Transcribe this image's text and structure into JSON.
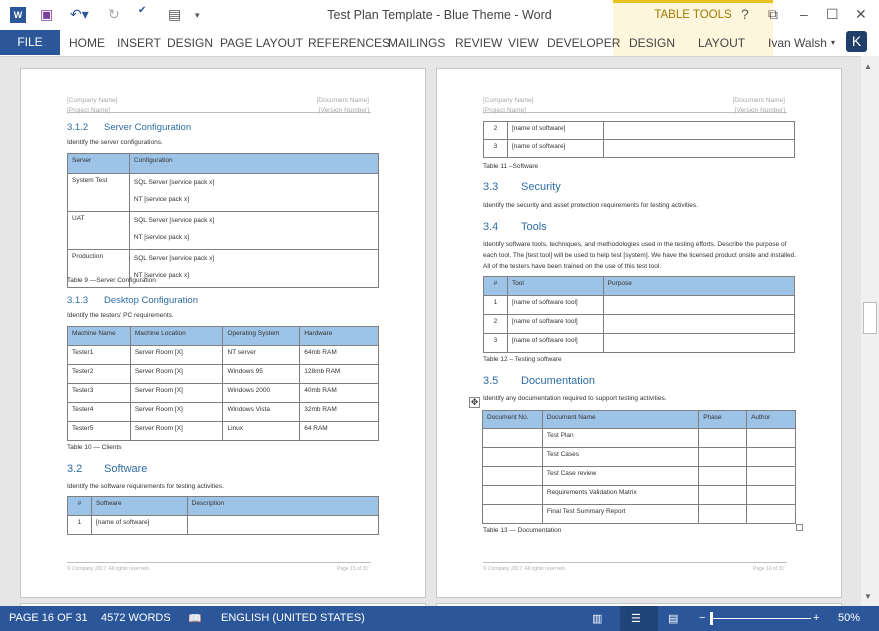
{
  "window": {
    "title": "Test Plan Template - Blue Theme - Word",
    "table_tools": "TABLE TOOLS",
    "user": "Ivan Walsh",
    "user_initial": "K",
    "accent": "#2b579a"
  },
  "ribbon": {
    "tabs": [
      "FILE",
      "HOME",
      "INSERT",
      "DESIGN",
      "PAGE LAYOUT",
      "REFERENCES",
      "MAILINGS",
      "REVIEW",
      "VIEW",
      "DEVELOPER",
      "DESIGN",
      "LAYOUT"
    ]
  },
  "header": {
    "company": "[Company Name]",
    "project": "[Project Name]",
    "document": "[Document Name]",
    "version": "[Version Number]"
  },
  "footer": {
    "copyright": "© Company 2017. All rights reserved.",
    "left_page": "Page 15 of 31",
    "right_page": "Page 16 of 31"
  },
  "left": {
    "s312": {
      "num": "3.1.2",
      "title": "Server Configuration",
      "text": "Identify the server configurations.",
      "caption": "Table 9 —Server Configuration",
      "table": [
        [
          "Server",
          "Configuration"
        ],
        [
          "System Test",
          "SQL Server [service pack x]\nNT [service pack x]"
        ],
        [
          "UAT",
          "SQL Server [service pack x]\nNT [service pack x]"
        ],
        [
          "Production",
          "SQL Server [service pack x]\nNT [service pack x]"
        ]
      ]
    },
    "s313": {
      "num": "3.1.3",
      "title": "Desktop Configuration",
      "text": "Identify the testers' PC requirements.",
      "caption": "Table 10 — Clients",
      "table": [
        [
          "Machine Name",
          "Machine Location",
          "Operating System",
          "Hardware"
        ],
        [
          "Tester1",
          "Server Room [X]",
          "NT server",
          "64mb RAM"
        ],
        [
          "Tester2",
          "Server Room [X]",
          "Windows 95",
          "128mb RAM"
        ],
        [
          "Tester3",
          "Server Room [X]",
          "Windows 2000",
          "40mb RAM"
        ],
        [
          "Tester4",
          "Server Room [X]",
          "Windows Vista",
          "32mb RAM"
        ],
        [
          "Tester5",
          "Server Room [X]",
          "Linux",
          "64 RAM"
        ]
      ]
    },
    "s32": {
      "num": "3.2",
      "title": "Software",
      "text": "Identify the software requirements for testing activities.",
      "table": [
        [
          "#",
          "Software",
          "Description"
        ],
        [
          "1",
          "[name of software]",
          ""
        ]
      ]
    }
  },
  "right": {
    "sw_cont": {
      "caption": "Table 11 –Software",
      "table": [
        [
          "2",
          "[name of software]",
          ""
        ],
        [
          "3",
          "[name of software]",
          ""
        ]
      ]
    },
    "s33": {
      "num": "3.3",
      "title": "Security",
      "text": "Identify the security and asset protection requirements for testing activities."
    },
    "s34": {
      "num": "3.4",
      "title": "Tools",
      "text": "Identify software tools, techniques, and methodologies used in the testing efforts. Describe the purpose of each tool. The [test tool] will be used to help test [system]. We have the licensed product onsite and installed. All of the testers have been trained on the use of this test tool.",
      "caption": "Table 12 – Testing software",
      "table": [
        [
          "#",
          "Tool",
          "Purpose"
        ],
        [
          "1",
          "[name of software tool]",
          ""
        ],
        [
          "2",
          "[name of software tool]",
          ""
        ],
        [
          "3",
          "[name of software tool]",
          ""
        ]
      ]
    },
    "s35": {
      "num": "3.5",
      "title": "Documentation",
      "text": "Identify any documentation required to support testing activities.",
      "caption": "Table 13 — Documentation",
      "table": [
        [
          "Document No.",
          "Document Name",
          "Phase",
          "Author"
        ],
        [
          "",
          "Test Plan",
          "",
          ""
        ],
        [
          "",
          "Test Cases",
          "",
          ""
        ],
        [
          "",
          "Test Case review",
          "",
          ""
        ],
        [
          "",
          "Requirements Validation Matrix",
          "",
          ""
        ],
        [
          "",
          "Final Test Summary Report",
          "",
          ""
        ]
      ]
    }
  },
  "status": {
    "page": "PAGE 16 OF 31",
    "words": "4572 WORDS",
    "language": "ENGLISH (UNITED STATES)",
    "zoom": "50%",
    "zoom_percent": 50
  }
}
